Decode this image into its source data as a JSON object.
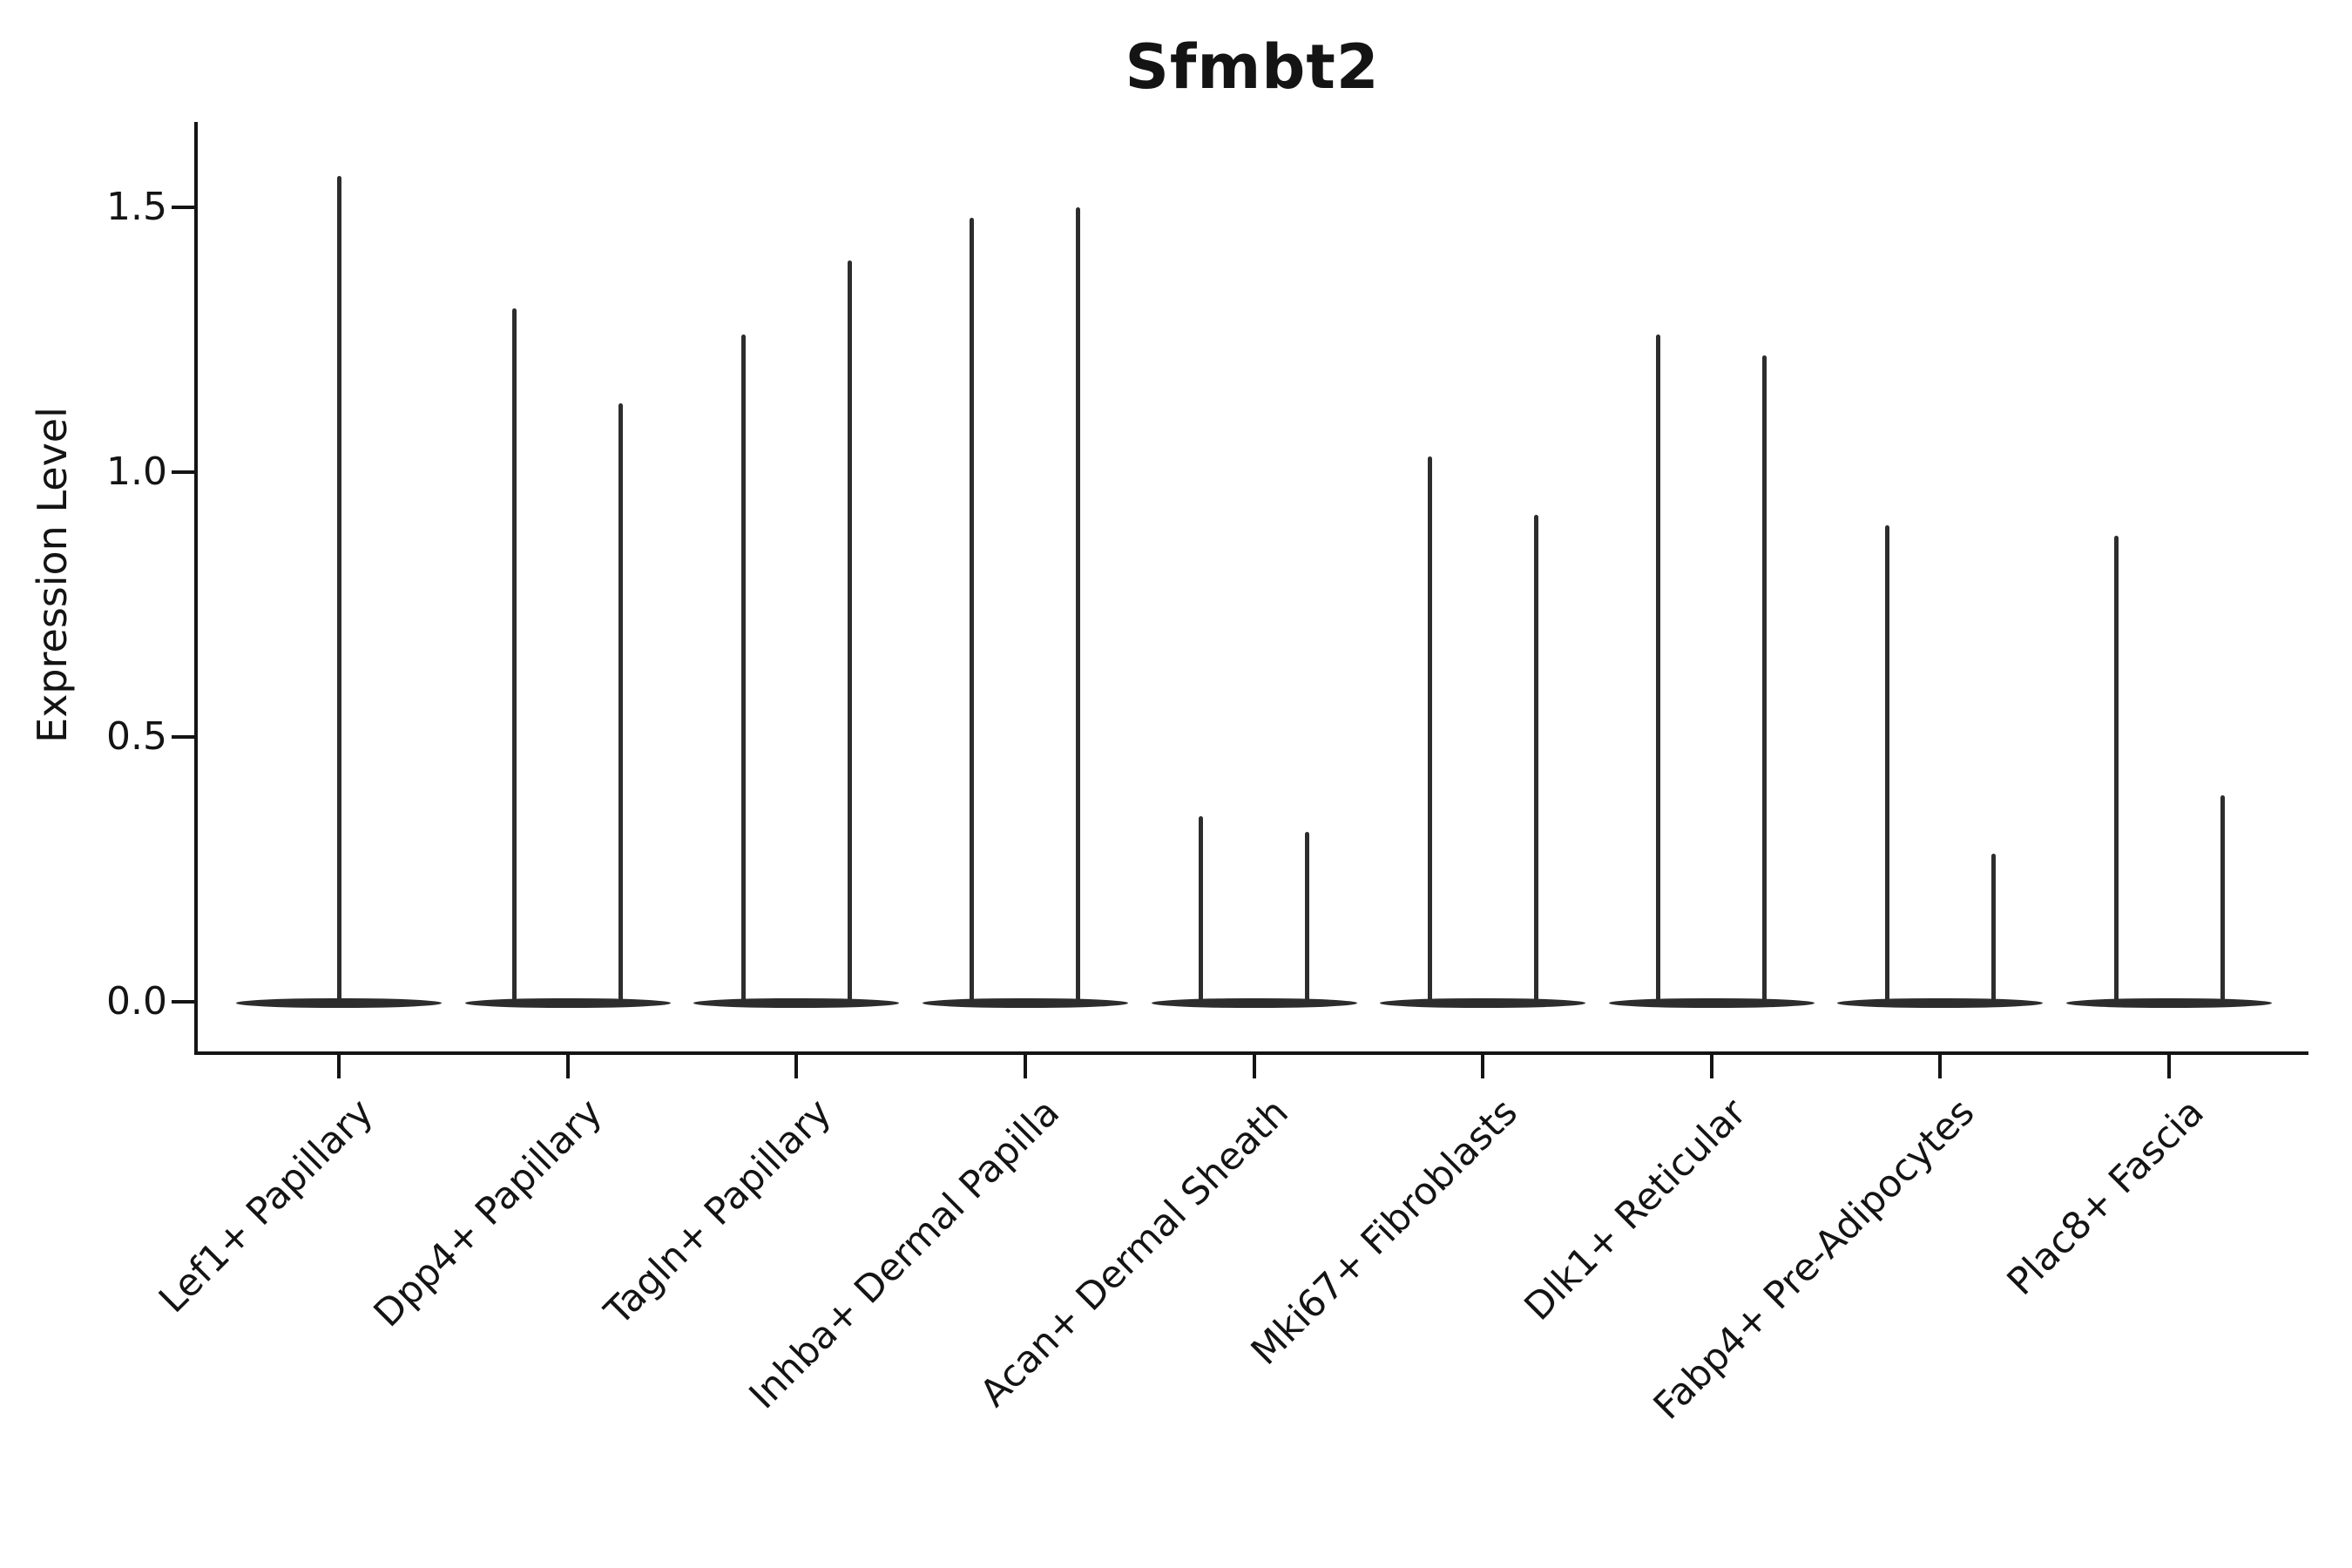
{
  "title": "Sfmbt2",
  "y_axis": {
    "label": "Expression Level",
    "tick_labels": [
      "1.5",
      "1.0",
      "0.5",
      "0.0"
    ]
  },
  "x_axis": {
    "tick_labels": [
      "Lef1+ Papillary",
      "Dpp4+ Papillary",
      "Tagln+ Papillary",
      "Inhba+ Dermal Papilla",
      "Acan+ Dermal Sheath",
      "Mki67+ Fibroblasts",
      "Dlk1+ Reticular",
      "Fabp4+ Pre-Adipocytes",
      "Plac8+ Fascia"
    ]
  },
  "colors": {
    "ink": "#141414",
    "violin": "#2d2d2d",
    "background": "#ffffff"
  },
  "chart_data": {
    "type": "violin",
    "title": "Sfmbt2",
    "xlabel": "",
    "ylabel": "Expression Level",
    "ylim": [
      -0.1,
      1.66
    ],
    "yticks": [
      0.0,
      0.5,
      1.0,
      1.5
    ],
    "grid": false,
    "legend": false,
    "categories": [
      "Lef1+ Papillary",
      "Dpp4+ Papillary",
      "Tagln+ Papillary",
      "Inhba+ Dermal Papilla",
      "Acan+ Dermal Sheath",
      "Mki67+ Fibroblasts",
      "Dlk1+ Reticular",
      "Fabp4+ Pre-Adipocytes",
      "Plac8+ Fascia"
    ],
    "baseline_value": 0.0,
    "violin_tail_maxima": [
      [
        1.56
      ],
      [
        1.31,
        1.13
      ],
      [
        1.26,
        1.4
      ],
      [
        1.48,
        1.5
      ],
      [
        0.35,
        0.32
      ],
      [
        1.03,
        0.92
      ],
      [
        1.26,
        1.22
      ],
      [
        0.9,
        0.28
      ],
      [
        0.88,
        0.39
      ]
    ],
    "layout_note": "Each cluster shows a flat violin mass at expression 0 with one or two thin spikes rising to the listed maxima"
  }
}
